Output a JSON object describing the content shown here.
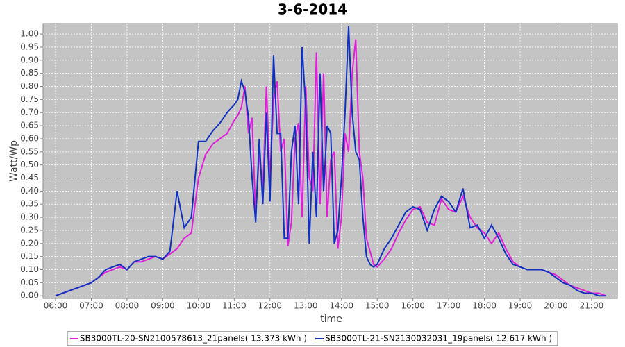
{
  "chart_data": {
    "type": "line",
    "title": "3-6-2014",
    "x_label": "time",
    "y_label": "Watt/Wp",
    "x": [
      6.0,
      6.2,
      6.4,
      6.6,
      6.8,
      7.0,
      7.2,
      7.4,
      7.6,
      7.8,
      8.0,
      8.2,
      8.4,
      8.6,
      8.8,
      9.0,
      9.2,
      9.4,
      9.6,
      9.8,
      10.0,
      10.2,
      10.4,
      10.6,
      10.8,
      11.0,
      11.1,
      11.2,
      11.3,
      11.4,
      11.5,
      11.6,
      11.7,
      11.8,
      11.9,
      12.0,
      12.1,
      12.2,
      12.3,
      12.4,
      12.5,
      12.6,
      12.7,
      12.8,
      12.9,
      13.0,
      13.1,
      13.2,
      13.3,
      13.4,
      13.5,
      13.6,
      13.7,
      13.8,
      13.9,
      14.0,
      14.1,
      14.2,
      14.3,
      14.4,
      14.5,
      14.6,
      14.7,
      14.8,
      14.9,
      15.0,
      15.2,
      15.4,
      15.6,
      15.8,
      16.0,
      16.2,
      16.4,
      16.6,
      16.8,
      17.0,
      17.2,
      17.4,
      17.6,
      17.8,
      18.0,
      18.2,
      18.4,
      18.6,
      18.8,
      19.0,
      19.2,
      19.4,
      19.6,
      19.8,
      20.0,
      20.2,
      20.4,
      20.6,
      20.8,
      21.0,
      21.2,
      21.4
    ],
    "series": [
      {
        "name": "SB3000TL-20-SN2100578613_21panels( 13.373 kWh )",
        "color": "#e020d8",
        "values": [
          0,
          0.01,
          0.02,
          0.03,
          0.04,
          0.05,
          0.07,
          0.09,
          0.1,
          0.11,
          0.1,
          0.13,
          0.13,
          0.14,
          0.15,
          0.14,
          0.16,
          0.18,
          0.22,
          0.24,
          0.45,
          0.54,
          0.58,
          0.6,
          0.62,
          0.67,
          0.69,
          0.72,
          0.8,
          0.62,
          0.68,
          0.3,
          0.55,
          0.4,
          0.8,
          0.45,
          0.75,
          0.82,
          0.55,
          0.6,
          0.19,
          0.28,
          0.6,
          0.66,
          0.3,
          0.8,
          0.45,
          0.4,
          0.93,
          0.35,
          0.85,
          0.3,
          0.52,
          0.55,
          0.18,
          0.3,
          0.62,
          0.55,
          0.85,
          0.98,
          0.55,
          0.45,
          0.22,
          0.17,
          0.12,
          0.11,
          0.14,
          0.18,
          0.24,
          0.29,
          0.33,
          0.34,
          0.28,
          0.27,
          0.37,
          0.33,
          0.32,
          0.38,
          0.3,
          0.26,
          0.24,
          0.2,
          0.24,
          0.18,
          0.13,
          0.11,
          0.1,
          0.1,
          0.1,
          0.09,
          0.08,
          0.06,
          0.04,
          0.03,
          0.02,
          0.01,
          0.01,
          0.0
        ]
      },
      {
        "name": "SB3000TL-21-SN2130032031_19panels( 12.617 kWh )",
        "color": "#1030c0",
        "values": [
          0,
          0.01,
          0.02,
          0.03,
          0.04,
          0.05,
          0.07,
          0.1,
          0.11,
          0.12,
          0.1,
          0.13,
          0.14,
          0.15,
          0.15,
          0.14,
          0.17,
          0.4,
          0.26,
          0.3,
          0.59,
          0.59,
          0.63,
          0.66,
          0.7,
          0.73,
          0.75,
          0.82,
          0.78,
          0.68,
          0.45,
          0.28,
          0.6,
          0.35,
          0.7,
          0.36,
          0.92,
          0.62,
          0.62,
          0.22,
          0.22,
          0.55,
          0.65,
          0.35,
          0.95,
          0.72,
          0.2,
          0.55,
          0.3,
          0.85,
          0.4,
          0.65,
          0.62,
          0.2,
          0.25,
          0.45,
          0.7,
          1.03,
          0.7,
          0.55,
          0.52,
          0.3,
          0.15,
          0.12,
          0.11,
          0.12,
          0.18,
          0.22,
          0.27,
          0.32,
          0.34,
          0.33,
          0.25,
          0.33,
          0.38,
          0.36,
          0.32,
          0.41,
          0.26,
          0.27,
          0.22,
          0.27,
          0.22,
          0.16,
          0.12,
          0.11,
          0.1,
          0.1,
          0.1,
          0.09,
          0.07,
          0.05,
          0.04,
          0.02,
          0.01,
          0.01,
          0.0,
          0.0
        ]
      }
    ],
    "xlim": [
      5.65,
      21.72
    ],
    "ylim": [
      -0.01,
      1.04
    ],
    "xticks": [
      {
        "value": 6,
        "label": "06:00"
      },
      {
        "value": 7,
        "label": "07:00"
      },
      {
        "value": 8,
        "label": "08:00"
      },
      {
        "value": 9,
        "label": "09:00"
      },
      {
        "value": 10,
        "label": "10:00"
      },
      {
        "value": 11,
        "label": "11:00"
      },
      {
        "value": 12,
        "label": "12:00"
      },
      {
        "value": 13,
        "label": "13:00"
      },
      {
        "value": 14,
        "label": "14:00"
      },
      {
        "value": 15,
        "label": "15:00"
      },
      {
        "value": 16,
        "label": "16:00"
      },
      {
        "value": 17,
        "label": "17:00"
      },
      {
        "value": 18,
        "label": "18:00"
      },
      {
        "value": 19,
        "label": "19:00"
      },
      {
        "value": 20,
        "label": "20:00"
      },
      {
        "value": 21,
        "label": "21:00"
      }
    ],
    "yticks": [
      {
        "value": 0,
        "label": "0.00"
      },
      {
        "value": 0.05,
        "label": "0.05"
      },
      {
        "value": 0.1,
        "label": "0.10"
      },
      {
        "value": 0.15,
        "label": "0.15"
      },
      {
        "value": 0.2,
        "label": "0.20"
      },
      {
        "value": 0.25,
        "label": "0.25"
      },
      {
        "value": 0.3,
        "label": "0.30"
      },
      {
        "value": 0.35,
        "label": "0.35"
      },
      {
        "value": 0.4,
        "label": "0.40"
      },
      {
        "value": 0.45,
        "label": "0.45"
      },
      {
        "value": 0.5,
        "label": "0.50"
      },
      {
        "value": 0.55,
        "label": "0.55"
      },
      {
        "value": 0.6,
        "label": "0.60"
      },
      {
        "value": 0.65,
        "label": "0.65"
      },
      {
        "value": 0.7,
        "label": "0.70"
      },
      {
        "value": 0.75,
        "label": "0.75"
      },
      {
        "value": 0.8,
        "label": "0.80"
      },
      {
        "value": 0.85,
        "label": "0.85"
      },
      {
        "value": 0.9,
        "label": "0.90"
      },
      {
        "value": 0.95,
        "label": "0.95"
      },
      {
        "value": 1.0,
        "label": "1.00"
      }
    ],
    "grid": true,
    "legend": "bottom"
  }
}
